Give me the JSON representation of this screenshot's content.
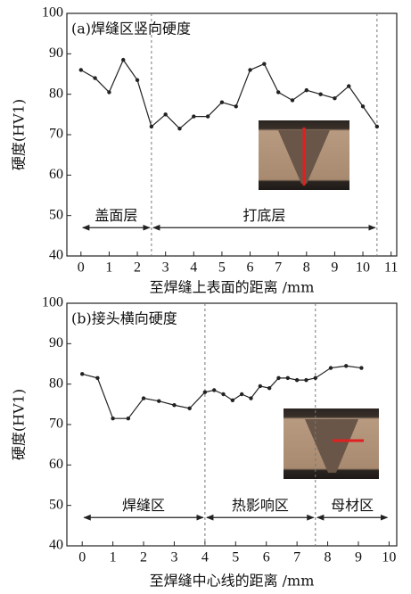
{
  "chart_data": [
    {
      "type": "line",
      "title": "(a)焊缝区竖向硬度",
      "x_label": "至焊缝上表面的距离 /mm",
      "y_label": "硬度(HV1)",
      "x": [
        0,
        0.5,
        1,
        1.5,
        2,
        2.5,
        3,
        3.5,
        4,
        4.5,
        5,
        5.5,
        6,
        6.5,
        7,
        7.5,
        8,
        8.5,
        9,
        9.5,
        10,
        10.5
      ],
      "values": [
        86,
        84,
        80.5,
        88.5,
        83.5,
        72,
        75,
        71.5,
        74.5,
        74.5,
        78,
        77,
        86,
        87.5,
        80.5,
        78.5,
        81,
        80,
        79,
        82,
        77,
        72
      ],
      "color": "#222222",
      "xlim": [
        -0.5,
        11.2
      ],
      "ylim": [
        40,
        100
      ],
      "xticks": [
        0,
        1,
        2,
        3,
        4,
        5,
        6,
        7,
        8,
        9,
        10,
        11
      ],
      "yticks": [
        40,
        50,
        60,
        70,
        80,
        90,
        100
      ],
      "vlines": [
        2.5,
        10.5
      ],
      "regions": [
        {
          "label": "盖面层",
          "x": [
            0,
            2.5
          ]
        },
        {
          "label": "打底层",
          "x": [
            2.5,
            10.5
          ]
        }
      ],
      "region_y": 47
    },
    {
      "type": "line",
      "title": "(b)接头横向硬度",
      "x_label": "至焊缝中心线的距离 /mm",
      "y_label": "硬度(HV1)",
      "x": [
        0,
        0.5,
        1,
        1.5,
        2,
        2.5,
        3,
        3.5,
        4,
        4.3,
        4.6,
        4.9,
        5.2,
        5.5,
        5.8,
        6.1,
        6.4,
        6.7,
        7,
        7.3,
        7.6,
        8.1,
        8.6,
        9.1
      ],
      "values": [
        82.5,
        81.5,
        71.5,
        71.5,
        76.5,
        75.8,
        74.8,
        74,
        78,
        78.5,
        77.5,
        76,
        77.5,
        76.5,
        79.5,
        79,
        81.5,
        81.5,
        81,
        81,
        81.5,
        84,
        84.5,
        84
      ],
      "color": "#222222",
      "xlim": [
        -0.5,
        10.25
      ],
      "ylim": [
        40,
        100
      ],
      "xticks": [
        0,
        1,
        2,
        3,
        4,
        5,
        6,
        7,
        8,
        9,
        10
      ],
      "yticks": [
        40,
        50,
        60,
        70,
        80,
        90,
        100
      ],
      "vlines": [
        4,
        7.6
      ],
      "regions": [
        {
          "label": "焊缝区",
          "x": [
            0,
            4
          ]
        },
        {
          "label": "热影响区",
          "x": [
            4,
            7.6
          ]
        },
        {
          "label": "母材区",
          "x": [
            7.6,
            10
          ]
        }
      ],
      "region_y": 47
    }
  ]
}
